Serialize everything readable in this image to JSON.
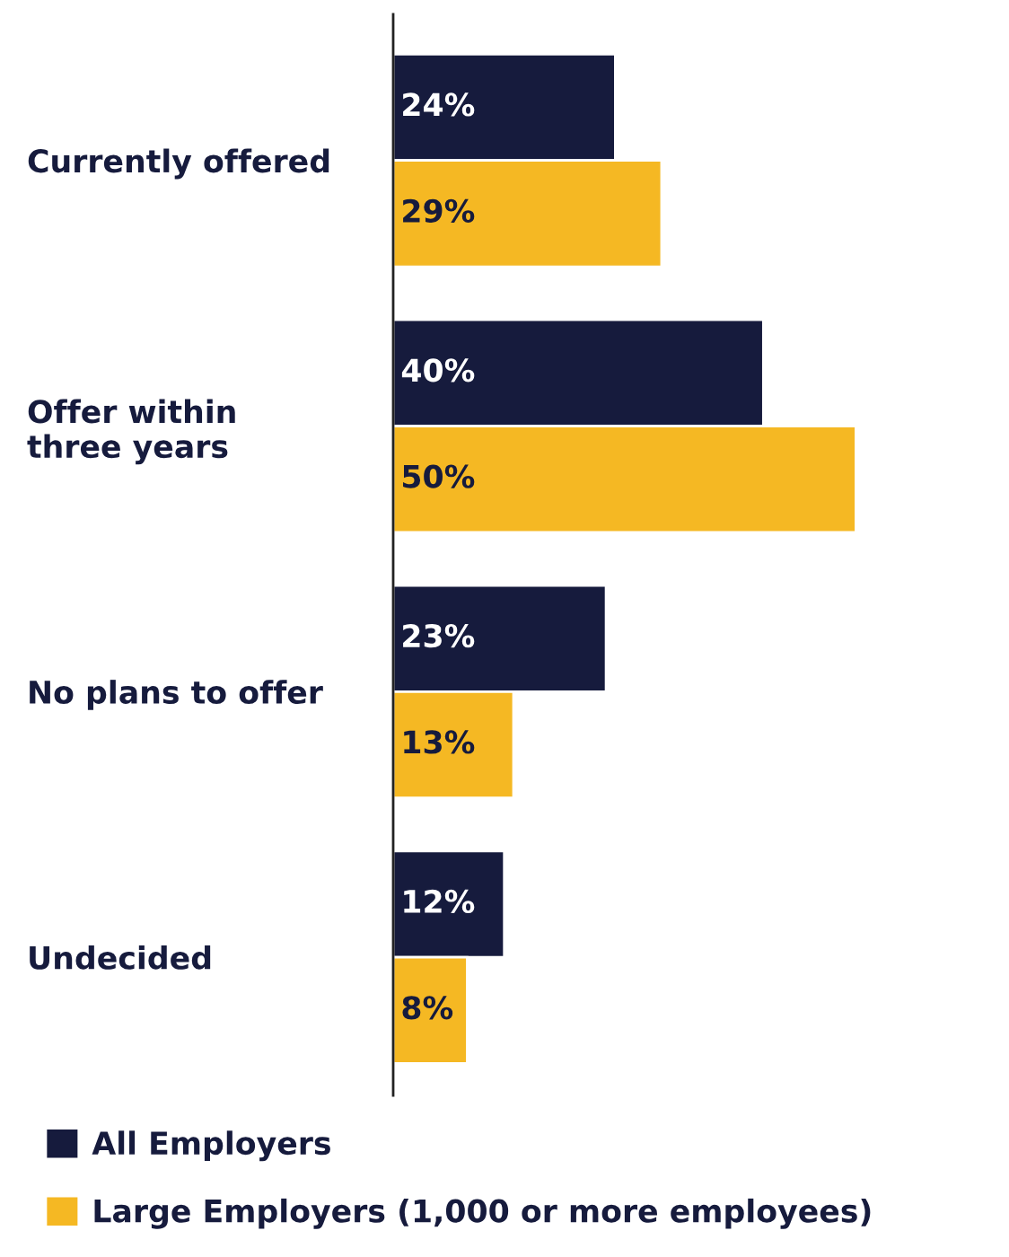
{
  "chart_data": {
    "type": "bar",
    "orientation": "horizontal",
    "categories": [
      "Currently offered",
      "Offer within\nthree years",
      "No plans to offer",
      "Undecided"
    ],
    "series": [
      {
        "name": "All Employers",
        "color": "#161b3d",
        "values": [
          24,
          40,
          23,
          12
        ],
        "value_labels": [
          "24%",
          "40%",
          "23%",
          "12%"
        ]
      },
      {
        "name": "Large Employers (1,000 or more employees)",
        "color": "#f5b823",
        "values": [
          29,
          50,
          13,
          8
        ],
        "value_labels": [
          "29%",
          "50%",
          "13%",
          "8%"
        ]
      }
    ],
    "legend": "bottom",
    "grid": false
  }
}
